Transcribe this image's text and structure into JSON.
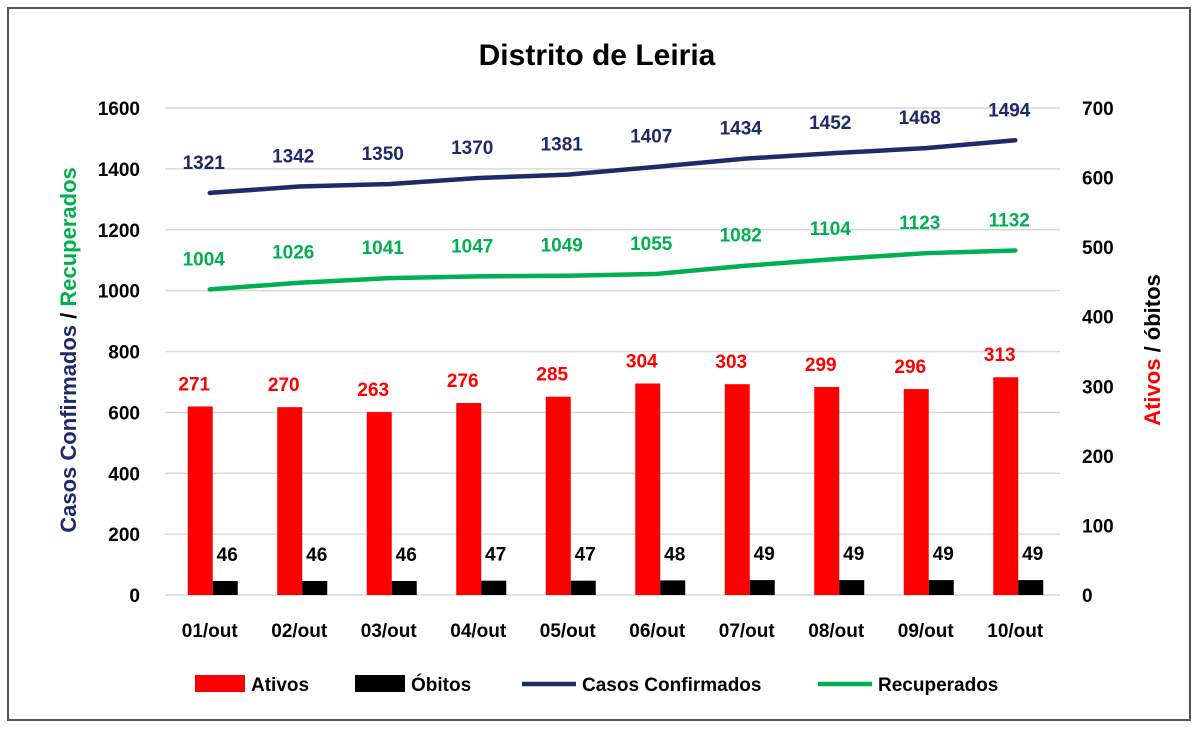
{
  "chart_data": {
    "type": "bar",
    "title": "Distrito de Leiria",
    "categories": [
      "01/out",
      "02/out",
      "03/out",
      "04/out",
      "05/out",
      "06/out",
      "07/out",
      "08/out",
      "09/out",
      "10/out"
    ],
    "y_left": {
      "label_parts": [
        "Casos Confirmados",
        " / ",
        "Recuperados"
      ],
      "label_colors": [
        "#1f2a6b",
        "#000000",
        "#00b050"
      ],
      "ylim": [
        0,
        1600
      ],
      "ticks": [
        "0",
        "200",
        "400",
        "600",
        "800",
        "1000",
        "1200",
        "1400",
        "1600"
      ]
    },
    "y_right": {
      "label_parts": [
        "Ativos",
        " / ",
        "óbitos"
      ],
      "label_colors": [
        "#ff0000",
        "#000000",
        "#000000"
      ],
      "ylim": [
        0,
        700
      ],
      "ticks": [
        "0",
        "100",
        "200",
        "300",
        "400",
        "500",
        "600",
        "700"
      ]
    },
    "grid": true,
    "legend_position": "bottom",
    "series": [
      {
        "name": "Ativos",
        "type": "bar",
        "axis": "right",
        "color": "#ff0000",
        "label_color": "#ff0000",
        "values": [
          271,
          270,
          263,
          276,
          285,
          304,
          303,
          299,
          296,
          313
        ]
      },
      {
        "name": "Óbitos",
        "type": "bar",
        "axis": "left",
        "color": "#000000",
        "label_color": "#000000",
        "values": [
          46,
          46,
          46,
          47,
          47,
          48,
          49,
          49,
          49,
          49
        ]
      },
      {
        "name": "Casos Confirmados",
        "type": "line",
        "axis": "left",
        "color": "#1f2a6b",
        "label_color": "#1f2a6b",
        "values": [
          1321,
          1342,
          1350,
          1370,
          1381,
          1407,
          1434,
          1452,
          1468,
          1494
        ]
      },
      {
        "name": "Recuperados",
        "type": "line",
        "axis": "left",
        "color": "#00b050",
        "label_color": "#00b050",
        "values": [
          1004,
          1026,
          1041,
          1047,
          1049,
          1055,
          1082,
          1104,
          1123,
          1132
        ]
      }
    ]
  }
}
